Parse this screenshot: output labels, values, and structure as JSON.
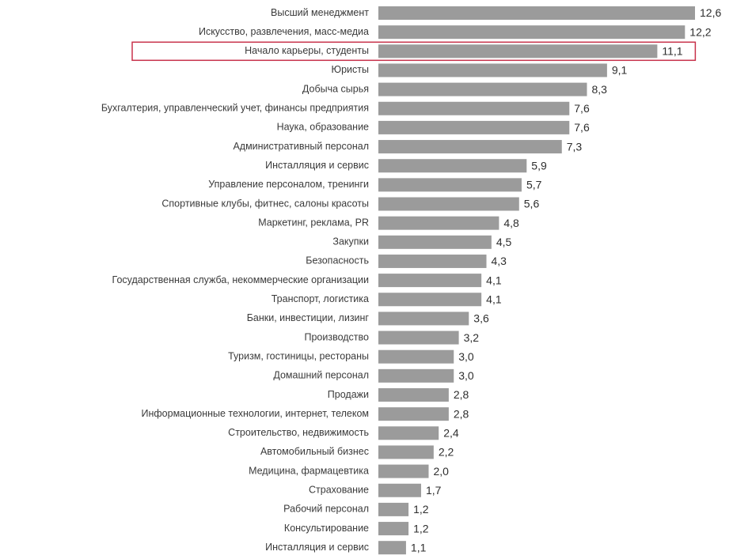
{
  "chart_data": {
    "type": "bar",
    "orientation": "horizontal",
    "title": "",
    "xlabel": "",
    "ylabel": "",
    "xlim": [
      0,
      12.6
    ],
    "grid": false,
    "legend": "none",
    "bar_color": "#9b9b9b",
    "highlight_color": "#c8324b",
    "highlight_index": 2,
    "categories": [
      "Высший менеджмент",
      "Искусство, развлечения, масс-медиа",
      "Начало карьеры, студенты",
      "Юристы",
      "Добыча сырья",
      "Бухгалтерия, управленческий учет, финансы предприятия",
      "Наука, образование",
      "Административный персонал",
      "Инсталляция и сервис",
      "Управление персоналом, тренинги",
      "Спортивные клубы, фитнес, салоны красоты",
      "Маркетинг, реклама, PR",
      "Закупки",
      "Безопасность",
      "Государственная служба, некоммерческие организации",
      "Транспорт, логистика",
      "Банки, инвестиции, лизинг",
      "Производство",
      "Туризм, гостиницы, рестораны",
      "Домашний персонал",
      "Продажи",
      "Информационные технологии, интернет, телеком",
      "Строительство, недвижимость",
      "Автомобильный бизнес",
      "Медицина, фармацевтика",
      "Страхование",
      "Рабочий персонал",
      "Консультирование",
      "Инсталляция и сервис"
    ],
    "values": [
      12.6,
      12.2,
      11.1,
      9.1,
      8.3,
      7.6,
      7.6,
      7.3,
      5.9,
      5.7,
      5.6,
      4.8,
      4.5,
      4.3,
      4.1,
      4.1,
      3.6,
      3.2,
      3.0,
      3.0,
      2.8,
      2.8,
      2.4,
      2.2,
      2.0,
      1.7,
      1.2,
      1.2,
      1.1
    ],
    "value_labels": [
      "12,6",
      "12,2",
      "11,1",
      "9,1",
      "8,3",
      "7,6",
      "7,6",
      "7,3",
      "5,9",
      "5,7",
      "5,6",
      "4,8",
      "4,5",
      "4,3",
      "4,1",
      "4,1",
      "3,6",
      "3,2",
      "3,0",
      "3,0",
      "2,8",
      "2,8",
      "2,4",
      "2,2",
      "2,0",
      "1,7",
      "1,2",
      "1,2",
      "1,1"
    ]
  }
}
